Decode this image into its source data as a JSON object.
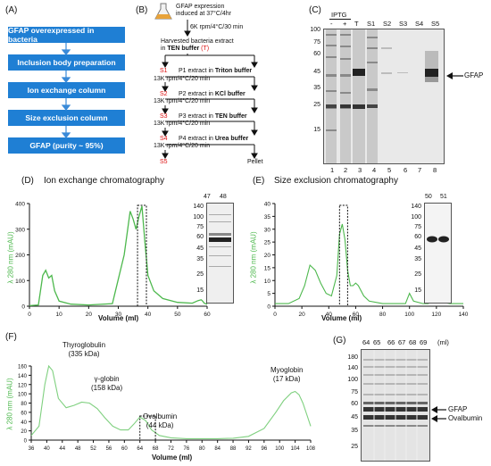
{
  "panelA": {
    "label": "(A)",
    "steps": [
      "GFAP  overexpressed in bacteria",
      "Inclusion body preparation",
      "Ion exchange column",
      "Size exclusion column",
      "GFAP (purity ~ 95%)"
    ]
  },
  "panelB": {
    "label": "(B)",
    "top_text": "GFAP expression",
    "top_text2": "induced at 37°C/4hr",
    "spin1": "6K rpm/4°C/30 min",
    "harvest1": "Harvested bacteria extract",
    "harvest2": "in ",
    "harvest_bold": "TEN buffer",
    "harvest_t": " (T)",
    "rows": [
      {
        "s": "S1",
        "p": "P1 extract in ",
        "buffer": "Triton buffer",
        "spin": "13K rpm/4°C/20 min"
      },
      {
        "s": "S2",
        "p": "P2 extract in ",
        "buffer": "KCl buffer",
        "spin": "13K rpm/4°C/20 min"
      },
      {
        "s": "S3",
        "p": "P3 extract in ",
        "buffer": "TEN buffer",
        "spin": "13K rpm/4°C/20 min"
      },
      {
        "s": "S4",
        "p": "P4 extract in ",
        "buffer": "Urea buffer",
        "spin": "13K rpm/4°C/20 min"
      }
    ],
    "s5": "S5",
    "pellet": "Pellet"
  },
  "panelC": {
    "label": "(C)",
    "iptg": "IPTG",
    "lane_heads": [
      "-",
      "+",
      "T",
      "S1",
      "S2",
      "S3",
      "S4",
      "S5"
    ],
    "lane_numbers": [
      "1",
      "2",
      "3",
      "4",
      "5",
      "6",
      "7",
      "8"
    ],
    "mw": [
      "100",
      "75",
      "60",
      "45",
      "35",
      "25",
      "15"
    ],
    "arrow_label": "GFAP"
  },
  "panelD": {
    "label": "(D)",
    "title": "Ion exchange chromatography",
    "ylabel": "λ 280 nm (mAU)",
    "xlabel": "Volume (ml)",
    "gel_lanes": [
      "47",
      "48"
    ],
    "gel_mw": [
      "140",
      "100",
      "75",
      "60",
      "45",
      "35",
      "25",
      "15"
    ]
  },
  "panelE": {
    "label": "(E)",
    "title": "Size exclusion chromatography",
    "ylabel": "λ 280 nm (mAU)",
    "xlabel": "Volume (ml)",
    "gel_lanes": [
      "50",
      "51"
    ],
    "gel_mw": [
      "140",
      "100",
      "75",
      "60",
      "45",
      "35",
      "25",
      "15"
    ]
  },
  "panelF": {
    "label": "(F)",
    "ylabel": "λ 280 nm (mAU)",
    "xlabel": "Volume (ml)",
    "annotations": [
      {
        "name": "Thyroglobulin",
        "sub": "(335 kDa)"
      },
      {
        "name": "γ-globin",
        "sub": "(158 kDa)"
      },
      {
        "name": "Ovalbumin",
        "sub": "(44 kDa)"
      },
      {
        "name": "Myoglobin",
        "sub": "(17 kDa)"
      }
    ]
  },
  "panelG": {
    "label": "(G)",
    "lane_heads": [
      "64",
      "65",
      "66",
      "67",
      "68",
      "69"
    ],
    "unit": "(ml)",
    "mw": [
      "180",
      "140",
      "100",
      "75",
      "60",
      "45",
      "35",
      "25"
    ],
    "arrows": [
      "GFAP",
      "Ovalbumin"
    ]
  },
  "chart_data": [
    {
      "type": "line",
      "title": "Ion exchange chromatography",
      "xlabel": "Volume (ml)",
      "ylabel": "λ 280 nm (mAU)",
      "xlim": [
        0,
        60
      ],
      "ylim": [
        0,
        400
      ],
      "xticks": [
        0,
        10,
        20,
        30,
        40,
        50,
        60
      ],
      "yticks": [
        0,
        100,
        200,
        300,
        400
      ],
      "series": [
        {
          "x": [
            0,
            3,
            4.5,
            5.5,
            6.5,
            7.5,
            8.5,
            10,
            14,
            20,
            28,
            32,
            34,
            35,
            36,
            37,
            38,
            39,
            40,
            42,
            45,
            50,
            55,
            57,
            58,
            58.5,
            59,
            60
          ],
          "y": [
            2,
            5,
            120,
            140,
            110,
            120,
            60,
            20,
            8,
            5,
            10,
            200,
            370,
            340,
            300,
            350,
            390,
            250,
            120,
            60,
            30,
            15,
            12,
            22,
            25,
            20,
            12,
            8
          ]
        }
      ],
      "highlight_x": [
        36.5,
        39.5
      ]
    },
    {
      "type": "line",
      "title": "Size exclusion chromatography",
      "xlabel": "Volume (ml)",
      "ylabel": "λ 280 nm (mAU)",
      "xlim": [
        0,
        140
      ],
      "ylim": [
        0,
        40
      ],
      "xticks": [
        0,
        20,
        40,
        60,
        80,
        100,
        120,
        140
      ],
      "yticks": [
        0,
        5,
        10,
        15,
        20,
        25,
        30,
        35,
        40
      ],
      "series": [
        {
          "x": [
            0,
            10,
            18,
            22,
            26,
            30,
            34,
            38,
            42,
            46,
            48,
            50,
            52,
            54,
            56,
            58,
            60,
            62,
            66,
            70,
            80,
            90,
            97,
            100,
            103,
            110,
            114,
            117,
            120,
            130,
            140
          ],
          "y": [
            1,
            1,
            3,
            8,
            16,
            14,
            9,
            5,
            4,
            12,
            28,
            32,
            26,
            14,
            8,
            8,
            9,
            8,
            4,
            2,
            1,
            1,
            1,
            5,
            2,
            1,
            1,
            5,
            2,
            1,
            1
          ]
        }
      ],
      "highlight_x": [
        48,
        54
      ]
    },
    {
      "type": "line",
      "xlabel": "Volume (ml)",
      "ylabel": "λ 280 nm (mAU)",
      "xlim": [
        36,
        108
      ],
      "ylim": [
        0,
        160
      ],
      "xticks": [
        36,
        40,
        44,
        48,
        52,
        56,
        60,
        64,
        68,
        72,
        76,
        80,
        84,
        88,
        92,
        96,
        100,
        104,
        108
      ],
      "yticks": [
        0,
        20,
        40,
        60,
        80,
        100,
        120,
        140,
        160
      ],
      "series": [
        {
          "x": [
            36,
            38,
            39.5,
            40.5,
            41.5,
            43,
            45,
            47,
            49,
            51,
            53,
            55,
            57,
            59,
            61,
            62.5,
            64,
            65.5,
            67,
            69,
            72,
            76,
            80,
            84,
            88,
            92,
            96,
            99,
            101,
            103,
            104,
            105,
            106,
            107,
            108
          ],
          "y": [
            10,
            30,
            120,
            160,
            150,
            90,
            70,
            75,
            82,
            80,
            68,
            48,
            30,
            22,
            22,
            35,
            50,
            42,
            22,
            10,
            5,
            3,
            3,
            3,
            4,
            8,
            25,
            60,
            85,
            102,
            105,
            98,
            80,
            55,
            30
          ]
        }
      ],
      "highlight_x": [
        64,
        68
      ]
    }
  ]
}
